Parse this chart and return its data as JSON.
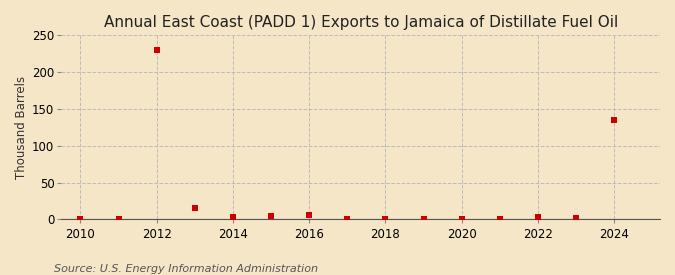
{
  "title": "Annual East Coast (PADD 1) Exports to Jamaica of Distillate Fuel Oil",
  "ylabel": "Thousand Barrels",
  "source": "Source: U.S. Energy Information Administration",
  "background_color": "#f5e6c8",
  "plot_background_color": "#f5e6c8",
  "years": [
    2010,
    2011,
    2012,
    2013,
    2014,
    2015,
    2016,
    2017,
    2018,
    2019,
    2020,
    2021,
    2022,
    2023,
    2024
  ],
  "values": [
    0,
    0.5,
    230,
    16,
    3,
    5,
    6,
    0.5,
    1,
    0.5,
    0.5,
    0.5,
    3,
    2,
    135
  ],
  "marker_color": "#cc0000",
  "marker_size": 18,
  "ylim": [
    0,
    250
  ],
  "xlim": [
    2009.5,
    2025.2
  ],
  "yticks": [
    0,
    50,
    100,
    150,
    200,
    250
  ],
  "xticks": [
    2010,
    2012,
    2014,
    2016,
    2018,
    2020,
    2022,
    2024
  ],
  "grid_color": "#bbbbbb",
  "title_fontsize": 11,
  "ylabel_fontsize": 8.5,
  "tick_fontsize": 8.5,
  "source_fontsize": 8
}
